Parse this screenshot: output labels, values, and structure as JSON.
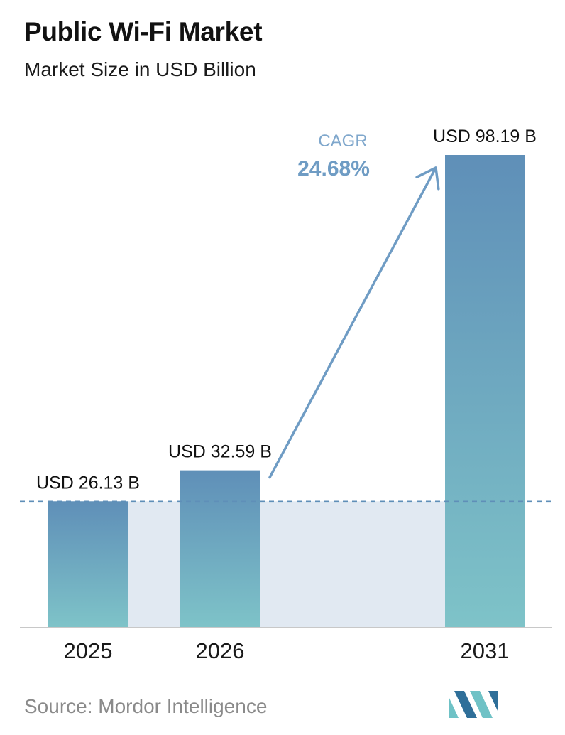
{
  "header": {
    "title": "Public Wi-Fi Market",
    "subtitle": "Market Size in USD Billion"
  },
  "chart_data": {
    "type": "bar",
    "title": "Public Wi-Fi Market",
    "subtitle": "Market Size in USD Billion",
    "categories": [
      "2025",
      "2026",
      "2031"
    ],
    "values": [
      26.13,
      32.59,
      98.19
    ],
    "value_labels": [
      "USD 26.13 B",
      "USD 32.59 B",
      "USD 98.19 B"
    ],
    "ylim": [
      0,
      100
    ],
    "grid": false,
    "legend": "none",
    "annotations": {
      "cagr_label": "CAGR",
      "cagr_value": "24.68%"
    },
    "reference_line": "dashed line at the 2025 value"
  },
  "footer": {
    "source": "Source:  Mordor Intelligence",
    "logo": "mordor-intelligence-logo"
  },
  "colors": {
    "bar_top": "#5f8fb8",
    "bar_bottom": "#7ec3c8",
    "band_fill": "#e1e9f2",
    "dashed_line": "#5f8fb8",
    "arrow": "#6f9cc4",
    "cagr_label": "#7fa7cc",
    "cagr_value": "#6f9cc4",
    "baseline": "#c8c8c8",
    "logo_dark": "#2f6f99",
    "logo_light": "#6fc2c6"
  }
}
